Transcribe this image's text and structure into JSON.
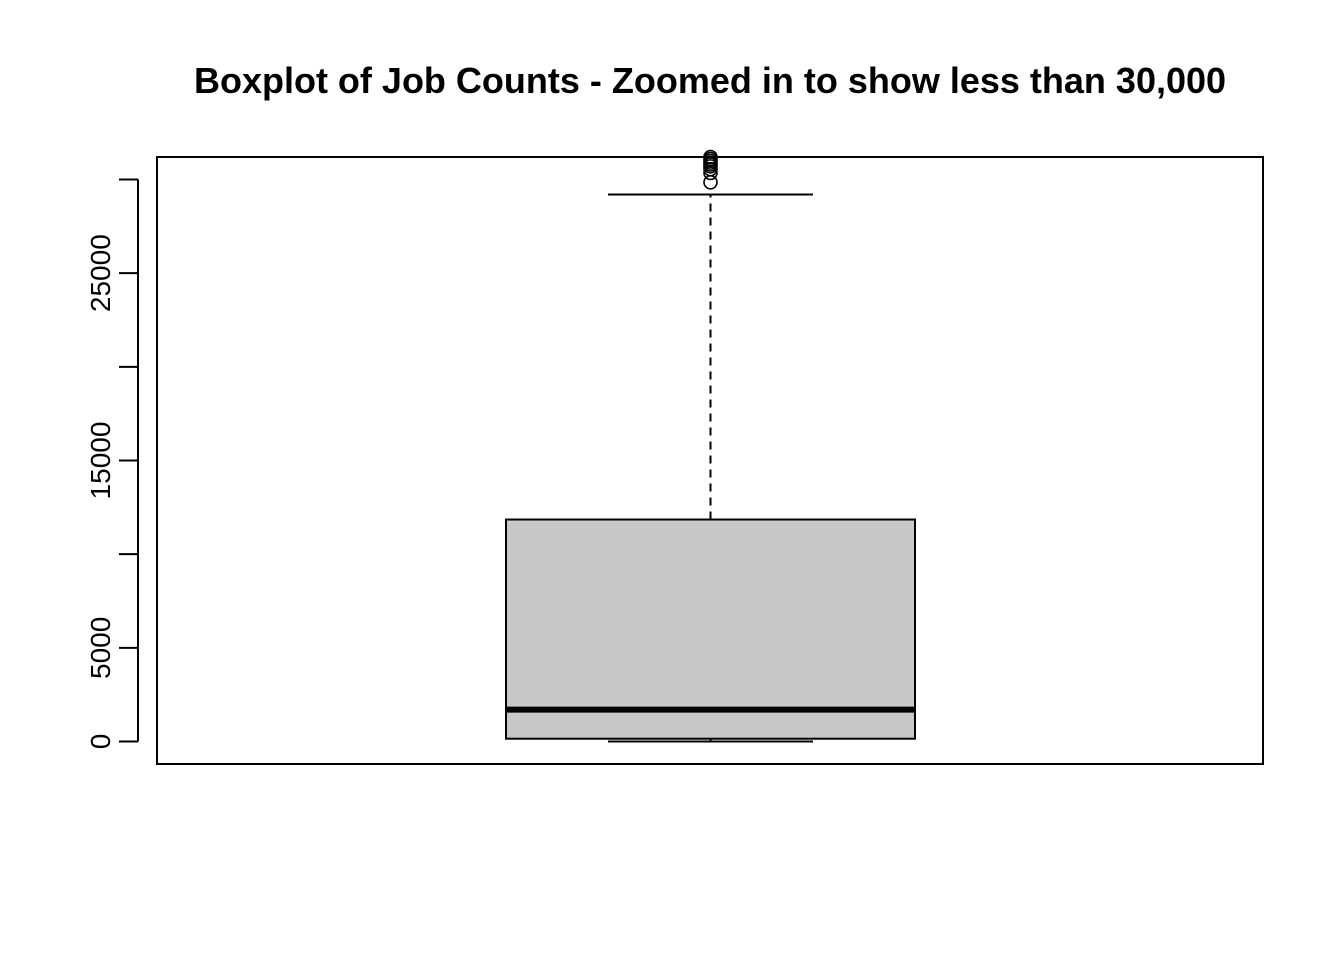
{
  "chart_data": {
    "type": "boxplot",
    "title": "Boxplot of Job Counts - Zoomed in to show less than 30,000",
    "xlabel": "",
    "ylabel": "",
    "ylim": [
      -1200,
      31200
    ],
    "y_ticks": [
      0,
      5000,
      10000,
      15000,
      20000,
      25000,
      30000
    ],
    "y_tick_labels": [
      "0",
      "5000",
      "",
      "15000",
      "",
      "25000",
      ""
    ],
    "grid": false,
    "box": {
      "lower_whisker": 0,
      "q1": 150,
      "median": 1700,
      "q3": 11850,
      "upper_whisker": 29200,
      "outliers": [
        29850,
        30350,
        30550,
        30700,
        30800,
        30900,
        31000,
        31100,
        31200
      ]
    },
    "colors": {
      "box_fill": "#c8c8c8",
      "lines": "#000000",
      "background": "#ffffff"
    }
  }
}
